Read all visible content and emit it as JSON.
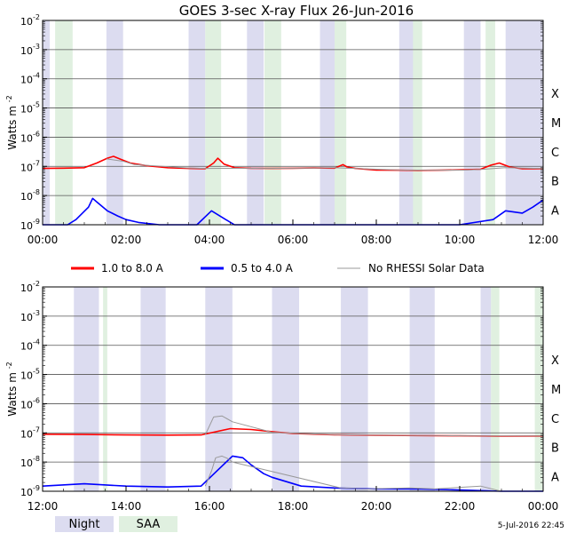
{
  "title": "GOES 3-sec X-ray Flux   26-Jun-2016",
  "footer_date": "5-Jul-2016 22:45",
  "colors": {
    "night": "#dcdcf0",
    "saa": "#e0f0e0",
    "long": "#ff0000",
    "short": "#0000ff",
    "gray": "#999999"
  },
  "legend": {
    "long_label": "1.0 to 8.0 A",
    "short_label": "0.5 to 4.0 A",
    "gray_label": "No RHESSI Solar Data",
    "night_label": "Night",
    "saa_label": "SAA"
  },
  "chart_data": [
    {
      "type": "line",
      "title": "GOES 3-sec X-ray Flux   26-Jun-2016",
      "ylabel": "Watts m-2",
      "ylabel_main": "Watts m",
      "ylabel_sup": "-2",
      "yscale": "log",
      "ylim": [
        1e-09,
        0.01
      ],
      "ytick_exponents": [
        -2,
        -3,
        -4,
        -5,
        -6,
        -7,
        -8,
        -9
      ],
      "ytick_base": "10",
      "flare_classes": [
        "X",
        "M",
        "C",
        "B",
        "A"
      ],
      "xlim_hours": [
        0,
        12
      ],
      "xticks": [
        "00:00",
        "02:00",
        "04:00",
        "06:00",
        "08:00",
        "10:00",
        "12:00"
      ],
      "night_hours": [
        [
          0.0,
          0.17
        ],
        [
          1.53,
          1.93
        ],
        [
          3.5,
          3.9
        ],
        [
          4.9,
          5.3
        ],
        [
          6.65,
          7.0
        ],
        [
          8.55,
          8.9
        ],
        [
          10.1,
          10.5
        ],
        [
          11.1,
          12.0
        ]
      ],
      "saa_hours": [
        [
          0.3,
          0.72
        ],
        [
          3.9,
          4.28
        ],
        [
          5.32,
          5.72
        ],
        [
          7.0,
          7.28
        ],
        [
          8.88,
          9.1
        ],
        [
          10.62,
          10.85
        ]
      ],
      "series": [
        {
          "name": "1.0 to 8.0 A",
          "color": "#ff0000",
          "x": [
            0,
            0.5,
            1.0,
            1.3,
            1.55,
            1.7,
            1.85,
            2.1,
            2.5,
            3.0,
            3.5,
            3.9,
            4.1,
            4.2,
            4.35,
            4.6,
            5.0,
            5.5,
            6.0,
            6.5,
            7.0,
            7.2,
            7.3,
            7.5,
            8.0,
            8.5,
            9.0,
            9.5,
            10.0,
            10.5,
            10.75,
            10.95,
            11.2,
            11.5,
            12.0
          ],
          "y": [
            8.5e-08,
            8.7e-08,
            9e-08,
            1.3e-07,
            1.9e-07,
            2.2e-07,
            1.8e-07,
            1.3e-07,
            1.05e-07,
            9e-08,
            8.5e-08,
            8.3e-08,
            1.3e-07,
            1.9e-07,
            1.2e-07,
            9e-08,
            8.6e-08,
            8.5e-08,
            8.6e-08,
            8.8e-08,
            8.7e-08,
            1.15e-07,
            9.5e-08,
            8.5e-08,
            7.5e-08,
            7.4e-08,
            7.3e-08,
            7.4e-08,
            7.6e-08,
            8e-08,
            1.1e-07,
            1.3e-07,
            9.5e-08,
            8.3e-08,
            8.3e-08
          ]
        },
        {
          "name": "0.5 to 4.0 A",
          "color": "#0000ff",
          "x": [
            0,
            0.6,
            0.8,
            1.1,
            1.2,
            1.3,
            1.55,
            1.8,
            2.0,
            2.3,
            2.8,
            3.3,
            3.7,
            4.05,
            4.3,
            4.6,
            5.0,
            6.0,
            7.0,
            8.0,
            9.0,
            10.0,
            10.8,
            11.1,
            11.5,
            11.75,
            12.0
          ],
          "y": [
            1e-09,
            1e-09,
            1.5e-09,
            4e-09,
            8e-09,
            6e-09,
            3e-09,
            2e-09,
            1.5e-09,
            1.2e-09,
            1e-09,
            1e-09,
            1e-09,
            3e-09,
            1.8e-09,
            1e-09,
            1e-09,
            1e-09,
            1e-09,
            1e-09,
            1e-09,
            1e-09,
            1.5e-09,
            3e-09,
            2.5e-09,
            4e-09,
            7e-09
          ]
        },
        {
          "name": "No RHESSI Solar Data",
          "color": "#999999",
          "x": [
            1.53,
            1.93,
            2.2,
            3.5,
            3.9,
            4.9,
            5.3,
            6.65,
            7.0,
            8.55,
            8.9,
            10.1,
            10.5,
            11.1,
            12.0
          ],
          "y": [
            1.8e-07,
            1.5e-07,
            1.15e-07,
            8.8e-08,
            8.5e-08,
            8.6e-08,
            8.5e-08,
            8.8e-08,
            9e-08,
            7.5e-08,
            7.4e-08,
            7.5e-08,
            7.8e-08,
            9e-08,
            8.4e-08
          ]
        }
      ]
    },
    {
      "type": "line",
      "ylabel": "Watts m-2",
      "ylabel_main": "Watts m",
      "ylabel_sup": "-2",
      "yscale": "log",
      "ylim": [
        1e-09,
        0.01
      ],
      "ytick_exponents": [
        -2,
        -3,
        -4,
        -5,
        -6,
        -7,
        -8,
        -9
      ],
      "ytick_base": "10",
      "flare_classes": [
        "X",
        "M",
        "C",
        "B",
        "A"
      ],
      "xlim_hours": [
        12,
        24
      ],
      "xticks": [
        "12:00",
        "14:00",
        "16:00",
        "18:00",
        "20:00",
        "22:00",
        "00:00"
      ],
      "night_hours": [
        [
          12.75,
          13.35
        ],
        [
          14.35,
          14.95
        ],
        [
          15.9,
          16.55
        ],
        [
          17.5,
          18.15
        ],
        [
          19.15,
          19.8
        ],
        [
          20.8,
          21.4
        ],
        [
          22.5,
          22.75
        ]
      ],
      "saa_hours": [
        [
          13.45,
          13.55
        ],
        [
          22.75,
          22.95
        ],
        [
          23.8,
          24.0
        ]
      ],
      "series": [
        {
          "name": "1.0 to 8.0 A",
          "color": "#ff0000",
          "x": [
            12,
            13,
            14,
            15,
            15.8,
            16.5,
            17,
            17.5,
            18,
            19,
            20,
            21,
            22,
            23,
            24
          ],
          "y": [
            9e-08,
            8.8e-08,
            8.5e-08,
            8.4e-08,
            8.5e-08,
            1.4e-07,
            1.3e-07,
            1.1e-07,
            9.5e-08,
            8.6e-08,
            8.3e-08,
            8.1e-08,
            7.9e-08,
            7.7e-08,
            7.8e-08
          ]
        },
        {
          "name": "0.5 to 4.0 A",
          "color": "#0000ff",
          "x": [
            12,
            13,
            14,
            15,
            15.8,
            16.55,
            16.8,
            17,
            17.3,
            17.5,
            18.2,
            19,
            20,
            21,
            22,
            23,
            24
          ],
          "y": [
            1.5e-09,
            1.8e-09,
            1.5e-09,
            1.4e-09,
            1.5e-09,
            1.6e-08,
            1.4e-08,
            8e-09,
            4e-09,
            3e-09,
            1.5e-09,
            1.3e-09,
            1.2e-09,
            1.2e-09,
            1.1e-09,
            1e-09,
            1e-09
          ]
        },
        {
          "name": "No RHESSI Solar Data",
          "color": "#999999",
          "x": [
            15.9,
            16.1,
            16.3,
            16.55,
            17.5,
            18.15,
            19.15,
            19.8,
            20.8,
            21.4,
            22.5,
            24
          ],
          "y": [
            8.5e-08,
            3.5e-07,
            3.8e-07,
            2.4e-07,
            1.05e-07,
            9.5e-08,
            8.6e-08,
            8.4e-08,
            8.2e-08,
            8.1e-08,
            7.8e-08,
            7.8e-08
          ]
        },
        {
          "name": "0.5 to 4.0 A (no RHESSI)",
          "color": "#999999",
          "x": [
            15.9,
            16.05,
            16.15,
            16.3,
            16.45,
            16.55,
            19.15,
            19.8,
            20.8,
            21.4,
            22.5,
            23.0
          ],
          "y": [
            1.5e-09,
            5e-09,
            1.4e-08,
            1.6e-08,
            1.3e-08,
            1e-08,
            1.3e-09,
            1.2e-09,
            1.3e-09,
            1.2e-09,
            1.5e-09,
            1e-09
          ]
        }
      ]
    }
  ]
}
